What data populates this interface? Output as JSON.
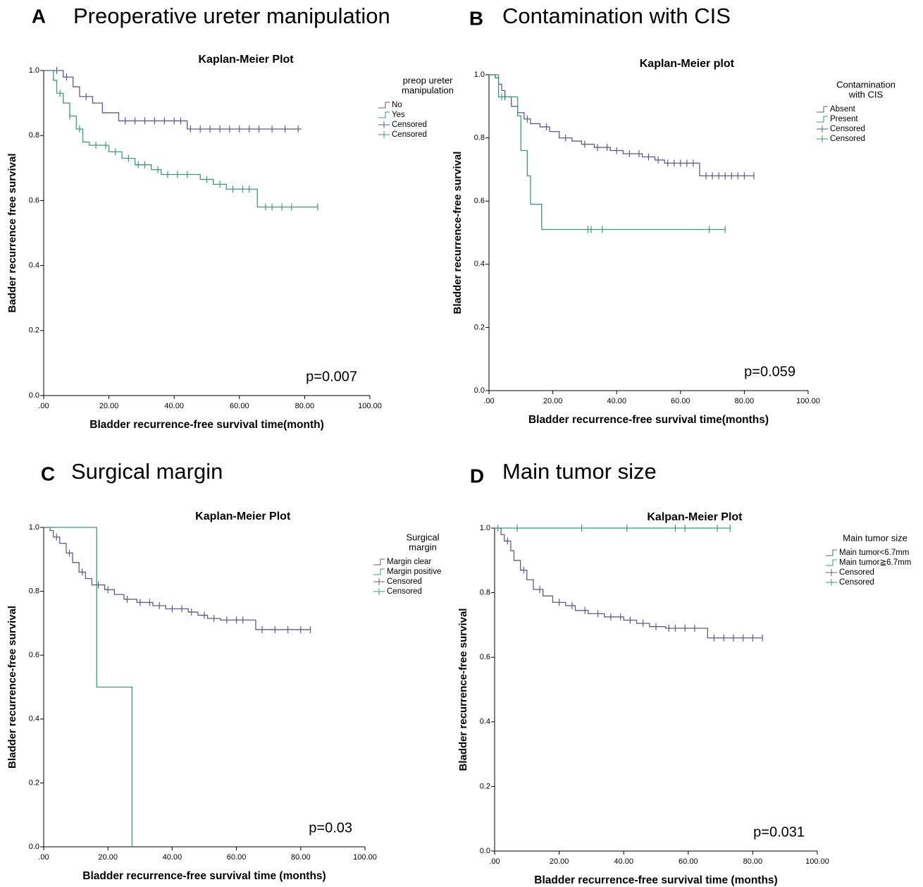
{
  "chart_data": [
    {
      "type": "km",
      "panel": "A",
      "title": "Preoperative ureter manipulation",
      "plot_title": "Kaplan-Meier Plot",
      "xlabel": "Bladder recurrence-free survival time(month)",
      "ylabel": "Badder recurrence free survival",
      "annotation": "p=0.007",
      "legend_title": [
        "preop ureter",
        "manipulation"
      ],
      "xlim": [
        0,
        100
      ],
      "ylim": [
        0,
        1
      ],
      "xticks": [
        {
          "value": 0,
          "label": ".00"
        },
        {
          "value": 20,
          "label": "20.00"
        },
        {
          "value": 40,
          "label": "40.00"
        },
        {
          "value": 60,
          "label": "60.00"
        },
        {
          "value": 80,
          "label": "80.00"
        },
        {
          "value": 100,
          "label": "100.00"
        }
      ],
      "yticks": [
        {
          "value": 0,
          "label": "0.0"
        },
        {
          "value": 0.2,
          "label": "0.2"
        },
        {
          "value": 0.4,
          "label": "0.4"
        },
        {
          "value": 0.6,
          "label": "0.6"
        },
        {
          "value": 0.8,
          "label": "0.8"
        },
        {
          "value": 1,
          "label": "1.0"
        }
      ],
      "series": [
        {
          "name": "No",
          "color": "#5a5c8c",
          "kind": "step",
          "x": [
            0,
            6,
            9,
            11,
            15,
            18,
            23,
            44,
            79
          ],
          "values": [
            1,
            0.98,
            0.95,
            0.92,
            0.9,
            0.87,
            0.845,
            0.82,
            0.82
          ]
        },
        {
          "name": "Yes",
          "color": "#3c9a78",
          "kind": "step",
          "x": [
            0,
            3,
            4,
            6,
            8,
            10,
            12,
            14,
            20,
            24,
            28,
            33,
            36,
            48,
            52,
            56,
            65.5,
            84
          ],
          "values": [
            1,
            0.97,
            0.93,
            0.9,
            0.86,
            0.82,
            0.78,
            0.77,
            0.75,
            0.73,
            0.71,
            0.695,
            0.68,
            0.665,
            0.65,
            0.635,
            0.58,
            0.58
          ]
        },
        {
          "name": "Censored",
          "color": "#5a5c8c",
          "kind": "censor",
          "x": [
            4,
            7,
            13,
            25,
            28,
            31,
            34,
            37,
            40,
            42,
            45,
            48,
            51,
            54,
            57,
            60,
            63,
            66,
            70,
            74,
            78
          ],
          "values": [
            1,
            0.98,
            0.92,
            0.845,
            0.845,
            0.845,
            0.845,
            0.845,
            0.845,
            0.845,
            0.82,
            0.82,
            0.82,
            0.82,
            0.82,
            0.82,
            0.82,
            0.82,
            0.82,
            0.82,
            0.82
          ]
        },
        {
          "name": "Censored",
          "color": "#3c9a78",
          "kind": "censor",
          "x": [
            5,
            8,
            11,
            16,
            19,
            22,
            26,
            29,
            31,
            35,
            38,
            41,
            44,
            50,
            54,
            58,
            61,
            63,
            68,
            70,
            73,
            76,
            84
          ],
          "values": [
            0.93,
            0.86,
            0.82,
            0.77,
            0.77,
            0.75,
            0.73,
            0.71,
            0.71,
            0.695,
            0.68,
            0.68,
            0.68,
            0.665,
            0.65,
            0.635,
            0.635,
            0.635,
            0.58,
            0.58,
            0.58,
            0.58,
            0.58
          ]
        }
      ]
    },
    {
      "type": "km",
      "panel": "B",
      "title": "Contamination with CIS",
      "plot_title": "Kaplan-Meier plot",
      "xlabel": "Bladder recurrence-free survival time(months)",
      "ylabel": "Bladder recurrence-free survival",
      "annotation": "p=0.059",
      "legend_title": [
        "Contamination",
        "with CIS"
      ],
      "xlim": [
        0,
        100
      ],
      "ylim": [
        0,
        1
      ],
      "xticks": [
        {
          "value": 0,
          "label": ".00"
        },
        {
          "value": 20,
          "label": "20.00"
        },
        {
          "value": 40,
          "label": "40.00"
        },
        {
          "value": 60,
          "label": "60.00"
        },
        {
          "value": 80,
          "label": "80.00"
        },
        {
          "value": 100,
          "label": "100.00"
        }
      ],
      "yticks": [
        {
          "value": 0,
          "label": "0.0"
        },
        {
          "value": 0.2,
          "label": "0.2"
        },
        {
          "value": 0.4,
          "label": "0.4"
        },
        {
          "value": 0.6,
          "label": "0.6"
        },
        {
          "value": 0.8,
          "label": "0.8"
        },
        {
          "value": 1,
          "label": "1.0"
        }
      ],
      "series": [
        {
          "name": "Absent",
          "color": "#5a5c8c",
          "kind": "step",
          "x": [
            0,
            2,
            3,
            4,
            5,
            7,
            9,
            11,
            13,
            16,
            19,
            22,
            26,
            29,
            33,
            38,
            42,
            48,
            52,
            55,
            66,
            83
          ],
          "values": [
            1,
            0.99,
            0.97,
            0.95,
            0.93,
            0.9,
            0.88,
            0.86,
            0.845,
            0.835,
            0.82,
            0.8,
            0.79,
            0.78,
            0.77,
            0.76,
            0.75,
            0.74,
            0.73,
            0.72,
            0.68,
            0.68
          ]
        },
        {
          "name": "Present",
          "color": "#3c9a78",
          "kind": "step",
          "x": [
            0,
            3,
            9,
            10,
            12,
            13,
            16.5,
            74
          ],
          "values": [
            1,
            0.93,
            0.87,
            0.76,
            0.68,
            0.59,
            0.51,
            0.51
          ]
        },
        {
          "name": "Censored",
          "color": "#5a5c8c",
          "kind": "censor",
          "x": [
            5,
            12,
            18,
            24,
            30,
            34,
            37,
            40,
            44,
            47,
            50,
            53,
            56,
            58,
            60,
            62,
            64,
            68,
            70,
            72,
            74,
            76,
            78,
            80,
            83
          ],
          "values": [
            0.93,
            0.86,
            0.835,
            0.8,
            0.78,
            0.77,
            0.77,
            0.76,
            0.75,
            0.75,
            0.74,
            0.73,
            0.72,
            0.72,
            0.72,
            0.72,
            0.72,
            0.68,
            0.68,
            0.68,
            0.68,
            0.68,
            0.68,
            0.68,
            0.68
          ]
        },
        {
          "name": "Censored",
          "color": "#3c9a78",
          "kind": "censor",
          "x": [
            4,
            31,
            32,
            35.5,
            69,
            74
          ],
          "values": [
            0.93,
            0.51,
            0.51,
            0.51,
            0.51,
            0.51
          ]
        }
      ]
    },
    {
      "type": "km",
      "panel": "C",
      "title": "Surgical margin",
      "plot_title": "Kaplan-Meier Plot",
      "xlabel": "Bladder recurrence-free survival time (months)",
      "ylabel": "Bladder recurrence-free survival",
      "annotation": "p=0.03",
      "legend_title": [
        "Surgical",
        "margin"
      ],
      "xlim": [
        0,
        100
      ],
      "ylim": [
        0,
        1
      ],
      "xticks": [
        {
          "value": 0,
          "label": ".00"
        },
        {
          "value": 20,
          "label": "20.00"
        },
        {
          "value": 40,
          "label": "40.00"
        },
        {
          "value": 60,
          "label": "60.00"
        },
        {
          "value": 80,
          "label": "80.00"
        },
        {
          "value": 100,
          "label": "100.00"
        }
      ],
      "yticks": [
        {
          "value": 0,
          "label": "0.0"
        },
        {
          "value": 0.2,
          "label": "0.2"
        },
        {
          "value": 0.4,
          "label": "0.4"
        },
        {
          "value": 0.6,
          "label": "0.6"
        },
        {
          "value": 0.8,
          "label": "0.8"
        },
        {
          "value": 1,
          "label": "1.0"
        }
      ],
      "series": [
        {
          "name": "Margin clear",
          "color": "#5a5c8c",
          "kind": "step",
          "x": [
            0,
            2,
            3,
            5,
            7,
            9,
            11,
            13,
            15,
            19,
            22,
            25,
            29,
            34,
            38,
            45,
            48,
            51,
            55,
            66,
            83
          ],
          "values": [
            1,
            0.99,
            0.97,
            0.95,
            0.92,
            0.89,
            0.86,
            0.84,
            0.82,
            0.805,
            0.79,
            0.775,
            0.765,
            0.755,
            0.745,
            0.735,
            0.725,
            0.715,
            0.71,
            0.68,
            0.68
          ]
        },
        {
          "name": "Margin positive",
          "color": "#3c9a78",
          "kind": "step",
          "x": [
            0,
            16.5,
            27.5
          ],
          "values": [
            1,
            0.5,
            0
          ]
        },
        {
          "name": "Censored",
          "color": "#5a5c8c",
          "kind": "censor",
          "x": [
            4,
            8,
            12,
            17,
            20,
            26,
            30,
            33,
            36,
            40,
            43,
            46,
            50,
            53,
            57,
            60,
            62,
            68,
            72,
            76,
            80,
            83
          ],
          "values": [
            0.97,
            0.92,
            0.86,
            0.82,
            0.805,
            0.775,
            0.765,
            0.765,
            0.755,
            0.745,
            0.745,
            0.735,
            0.725,
            0.715,
            0.71,
            0.71,
            0.71,
            0.68,
            0.68,
            0.68,
            0.68,
            0.68
          ]
        },
        {
          "name": "Censored",
          "color": "#3c9a78",
          "kind": "censor",
          "x": [],
          "values": []
        }
      ]
    },
    {
      "type": "km",
      "panel": "D",
      "title": "Main tumor size",
      "plot_title": "Kalpan-Meier Plot",
      "xlabel": "Bladder recurrence-free survival time (months)",
      "ylabel": "Bladder recurrence-free survival",
      "annotation": "p=0.031",
      "legend_title": [
        "Main tumor size"
      ],
      "xlim": [
        0,
        100
      ],
      "ylim": [
        0,
        1
      ],
      "xticks": [
        {
          "value": 0,
          "label": ".00"
        },
        {
          "value": 20,
          "label": "20.00"
        },
        {
          "value": 40,
          "label": "40.00"
        },
        {
          "value": 60,
          "label": "60.00"
        },
        {
          "value": 80,
          "label": "80.00"
        },
        {
          "value": 100,
          "label": "100.00"
        }
      ],
      "yticks": [
        {
          "value": 0,
          "label": "0.0"
        },
        {
          "value": 0.2,
          "label": "0.2"
        },
        {
          "value": 0.4,
          "label": "0.4"
        },
        {
          "value": 0.6,
          "label": "0.6"
        },
        {
          "value": 0.8,
          "label": "0.8"
        },
        {
          "value": 1,
          "label": "1.0"
        }
      ],
      "series": [
        {
          "name": "Main tumor<6.7mm",
          "color": "#5a5c8c",
          "kind": "step",
          "x": [
            0,
            2,
            3,
            5,
            6,
            8,
            10,
            12,
            15,
            18,
            22,
            25,
            29,
            34,
            40,
            44,
            48,
            53,
            66,
            83
          ],
          "values": [
            1,
            0.98,
            0.96,
            0.93,
            0.9,
            0.87,
            0.84,
            0.81,
            0.79,
            0.77,
            0.76,
            0.745,
            0.735,
            0.725,
            0.715,
            0.705,
            0.695,
            0.69,
            0.66,
            0.66
          ]
        },
        {
          "name": "Main tumor≧6.7mm",
          "color": "#3c9a78",
          "kind": "step",
          "x": [
            0,
            73
          ],
          "values": [
            1,
            1
          ]
        },
        {
          "name": "Censored",
          "color": "#5a5c8c",
          "kind": "censor",
          "x": [
            4,
            9,
            14,
            20,
            24,
            28,
            32,
            36,
            39,
            42,
            46,
            50,
            54,
            56,
            59,
            62,
            68,
            71,
            74,
            77,
            80,
            83
          ],
          "values": [
            0.96,
            0.87,
            0.81,
            0.77,
            0.76,
            0.745,
            0.735,
            0.725,
            0.725,
            0.715,
            0.705,
            0.695,
            0.69,
            0.69,
            0.69,
            0.69,
            0.66,
            0.66,
            0.66,
            0.66,
            0.66,
            0.66
          ]
        },
        {
          "name": "Censored",
          "color": "#3c9a78",
          "kind": "censor",
          "x": [
            1,
            7,
            27,
            41,
            56,
            59,
            69,
            73
          ],
          "values": [
            1,
            1,
            1,
            1,
            1,
            1,
            1,
            1
          ]
        }
      ]
    }
  ]
}
